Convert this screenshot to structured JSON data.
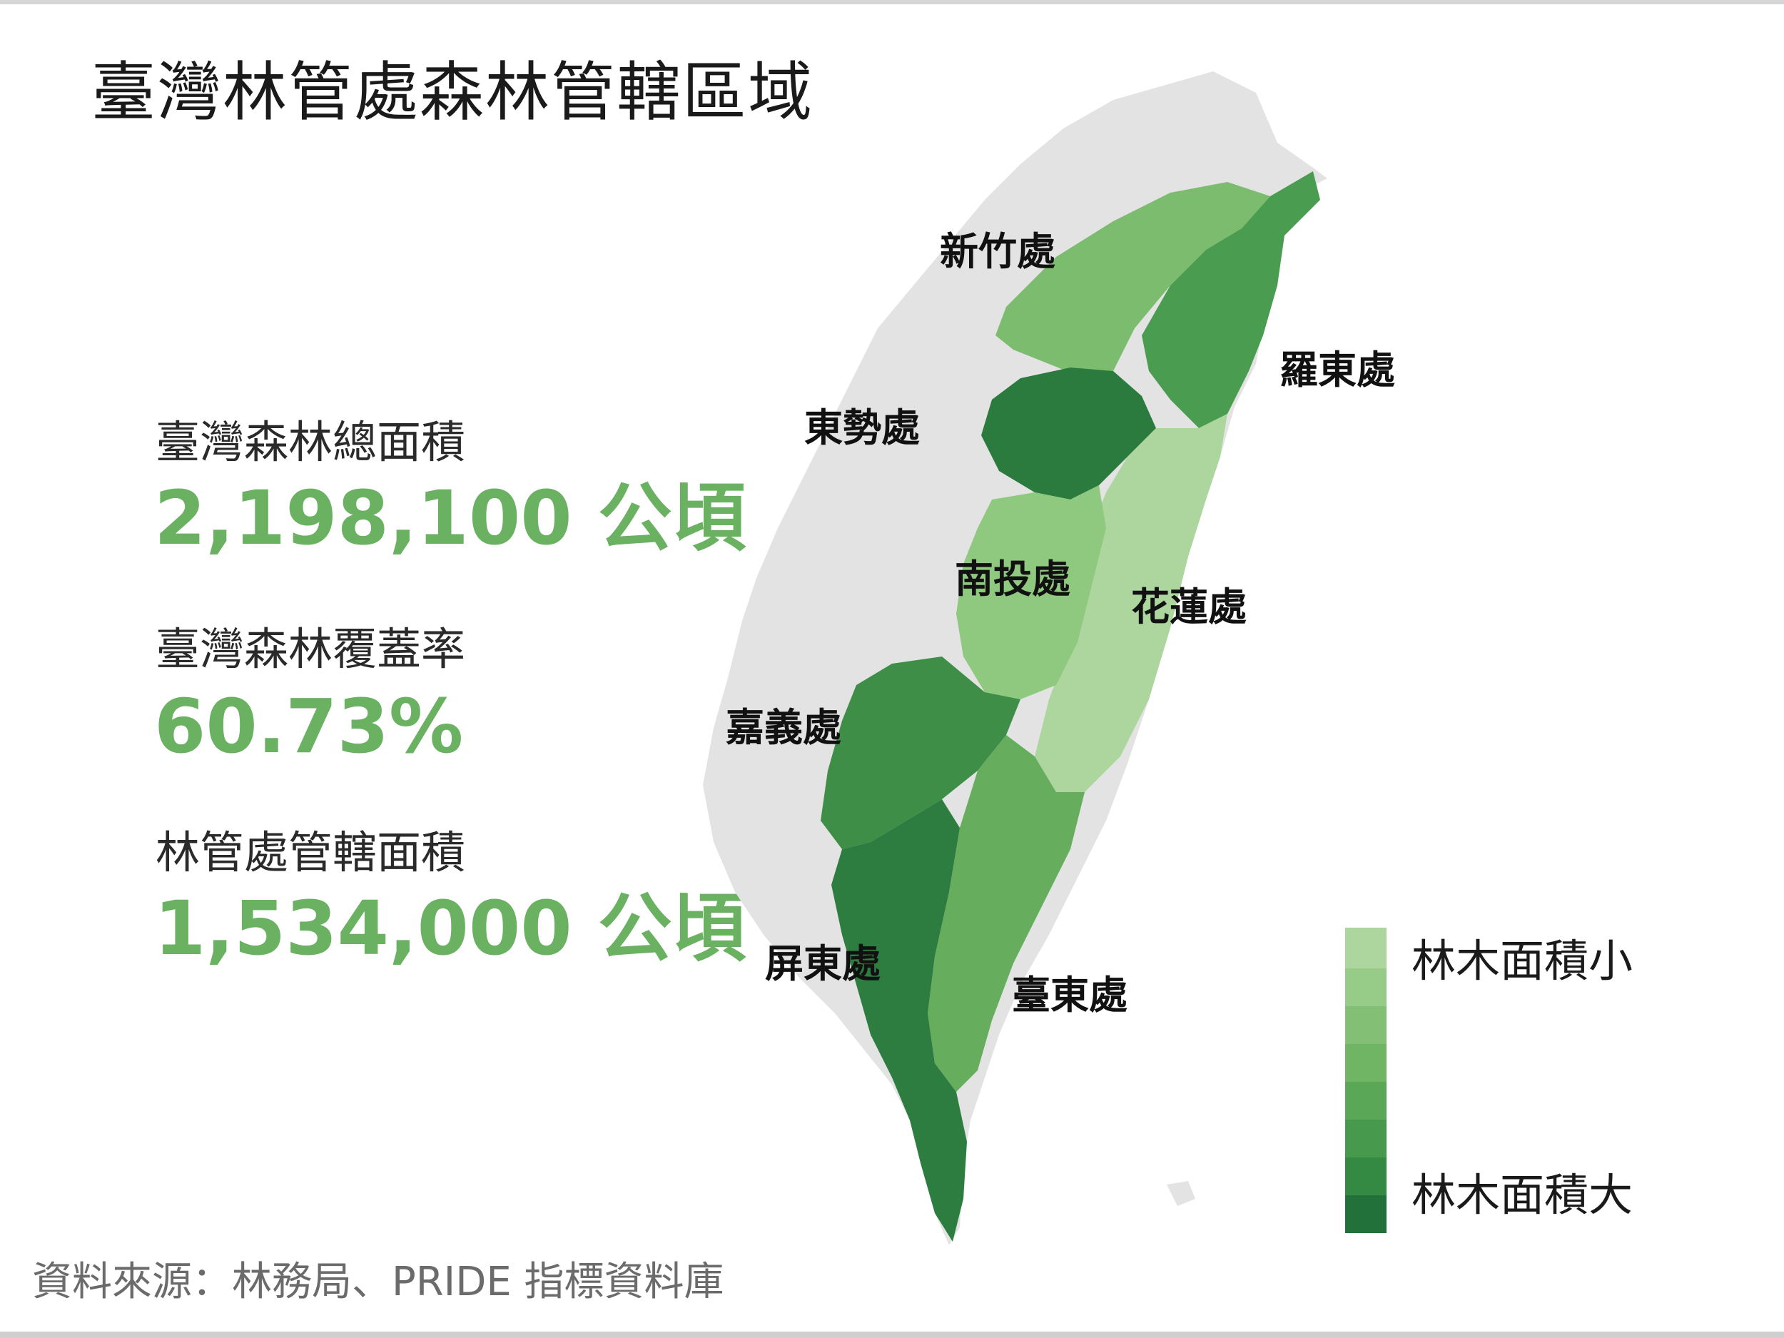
{
  "title": "臺灣林管處森林管轄區域",
  "stats": [
    {
      "label": "臺灣森林總面積",
      "value": "2,198,100 公頃"
    },
    {
      "label": "臺灣森林覆蓋率",
      "value": "60.73%"
    },
    {
      "label": "林管處管轄面積",
      "value": "1,534,000 公頃"
    }
  ],
  "regions": [
    {
      "name": "新竹處",
      "color": "#7cbc6e"
    },
    {
      "name": "羅東處",
      "color": "#4a9d50"
    },
    {
      "name": "東勢處",
      "color": "#2b7a3e"
    },
    {
      "name": "南投處",
      "color": "#8fc97f"
    },
    {
      "name": "花蓮處",
      "color": "#acd69d"
    },
    {
      "name": "嘉義處",
      "color": "#3e8e48"
    },
    {
      "name": "屏東處",
      "color": "#2e7d40"
    },
    {
      "name": "臺東處",
      "color": "#66ad5e"
    }
  ],
  "legend": {
    "label_small": "林木面積小",
    "label_large": "林木面積大",
    "colors": [
      "#acd69d",
      "#97cb88",
      "#83c075",
      "#6fb564",
      "#5aa857",
      "#47994d",
      "#348a43",
      "#23713a"
    ]
  },
  "colors": {
    "accent": "#6ab162",
    "land": "#e3e3e3"
  },
  "source": "資料來源：林務局、PRIDE 指標資料庫"
}
